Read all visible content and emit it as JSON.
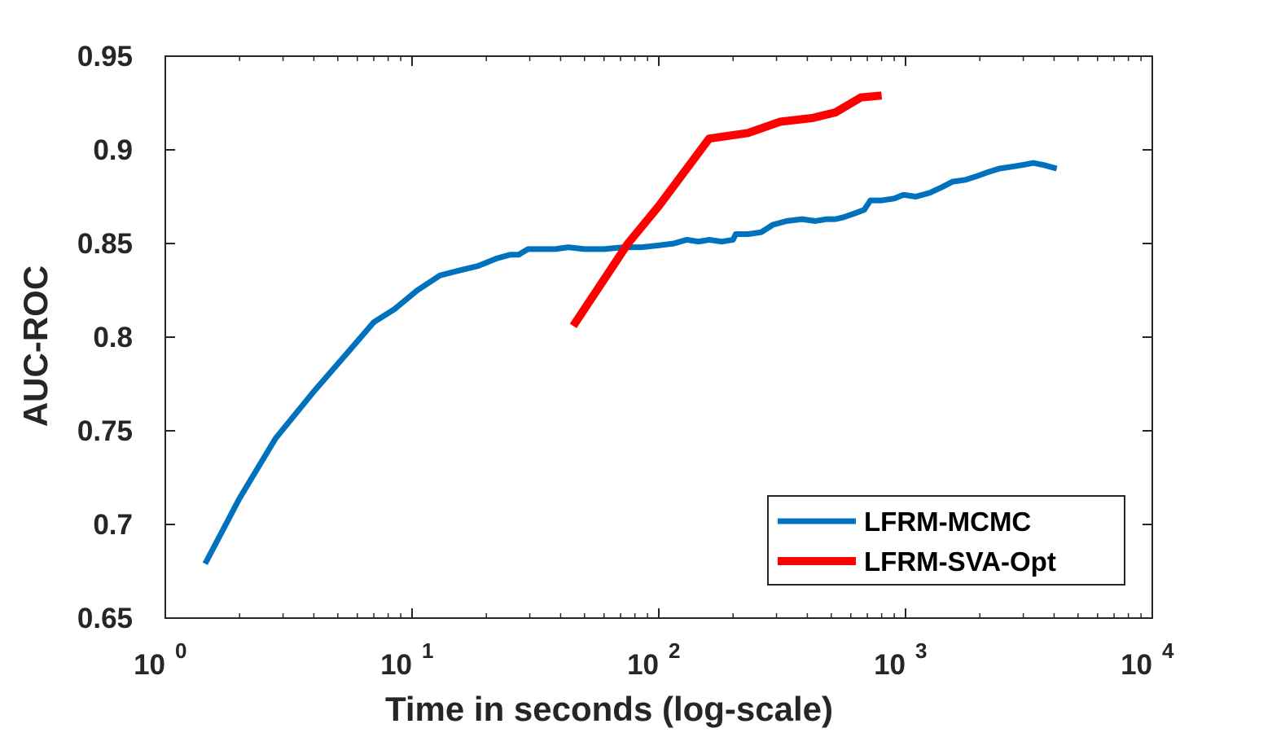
{
  "chart_data": {
    "type": "line",
    "title": "",
    "xlabel": "Time in seconds (log-scale)",
    "ylabel": "AUC-ROC",
    "x_scale": "log",
    "xlim": [
      1,
      10000
    ],
    "ylim": [
      0.65,
      0.95
    ],
    "grid": false,
    "legend_position": "bottom-right",
    "x_ticks": [
      {
        "base": "10",
        "exp": "0",
        "value": 1
      },
      {
        "base": "10",
        "exp": "1",
        "value": 10
      },
      {
        "base": "10",
        "exp": "2",
        "value": 100
      },
      {
        "base": "10",
        "exp": "3",
        "value": 1000
      },
      {
        "base": "10",
        "exp": "4",
        "value": 10000
      }
    ],
    "y_ticks": [
      {
        "label": "0.95",
        "value": 0.95
      },
      {
        "label": "0.9",
        "value": 0.9
      },
      {
        "label": "0.85",
        "value": 0.85
      },
      {
        "label": "0.8",
        "value": 0.8
      },
      {
        "label": "0.75",
        "value": 0.75
      },
      {
        "label": "0.7",
        "value": 0.7
      },
      {
        "label": "0.65",
        "value": 0.65
      }
    ],
    "series": [
      {
        "name": "LFRM-MCMC",
        "color": "#0072BD",
        "points": [
          [
            1.45,
            0.679
          ],
          [
            2.0,
            0.714
          ],
          [
            2.8,
            0.746
          ],
          [
            4.0,
            0.771
          ],
          [
            5.5,
            0.792
          ],
          [
            7.0,
            0.808
          ],
          [
            8.5,
            0.815
          ],
          [
            10.5,
            0.825
          ],
          [
            13.0,
            0.833
          ],
          [
            16.0,
            0.836
          ],
          [
            18.5,
            0.838
          ],
          [
            22.0,
            0.842
          ],
          [
            25.0,
            0.844
          ],
          [
            27.0,
            0.844
          ],
          [
            29.5,
            0.847
          ],
          [
            33.0,
            0.847
          ],
          [
            38.0,
            0.847
          ],
          [
            43.0,
            0.848
          ],
          [
            50.0,
            0.847
          ],
          [
            60.0,
            0.847
          ],
          [
            72.0,
            0.848
          ],
          [
            85.0,
            0.848
          ],
          [
            100.0,
            0.849
          ],
          [
            115.0,
            0.85
          ],
          [
            130.0,
            0.852
          ],
          [
            145.0,
            0.851
          ],
          [
            160.0,
            0.852
          ],
          [
            180.0,
            0.851
          ],
          [
            200.0,
            0.852
          ],
          [
            205.0,
            0.855
          ],
          [
            230.0,
            0.855
          ],
          [
            260.0,
            0.856
          ],
          [
            290.0,
            0.86
          ],
          [
            330.0,
            0.862
          ],
          [
            380.0,
            0.863
          ],
          [
            430.0,
            0.862
          ],
          [
            480.0,
            0.863
          ],
          [
            520.0,
            0.863
          ],
          [
            560.0,
            0.864
          ],
          [
            620.0,
            0.866
          ],
          [
            680.0,
            0.868
          ],
          [
            720.0,
            0.873
          ],
          [
            800.0,
            0.873
          ],
          [
            900.0,
            0.874
          ],
          [
            980.0,
            0.876
          ],
          [
            1100.0,
            0.875
          ],
          [
            1250.0,
            0.877
          ],
          [
            1400.0,
            0.88
          ],
          [
            1550.0,
            0.883
          ],
          [
            1750.0,
            0.884
          ],
          [
            1950.0,
            0.886
          ],
          [
            2150.0,
            0.888
          ],
          [
            2400.0,
            0.89
          ],
          [
            2700.0,
            0.891
          ],
          [
            3000.0,
            0.892
          ],
          [
            3300.0,
            0.893
          ],
          [
            3600.0,
            0.892
          ],
          [
            4100.0,
            0.89
          ]
        ]
      },
      {
        "name": "LFRM-SVA-Opt",
        "color": "#FF0000",
        "points": [
          [
            45.0,
            0.806
          ],
          [
            75.0,
            0.85
          ],
          [
            100.0,
            0.87
          ],
          [
            160.0,
            0.906
          ],
          [
            230.0,
            0.909
          ],
          [
            310.0,
            0.915
          ],
          [
            420.0,
            0.917
          ],
          [
            520.0,
            0.92
          ],
          [
            660.0,
            0.928
          ],
          [
            800.0,
            0.929
          ]
        ]
      }
    ]
  }
}
